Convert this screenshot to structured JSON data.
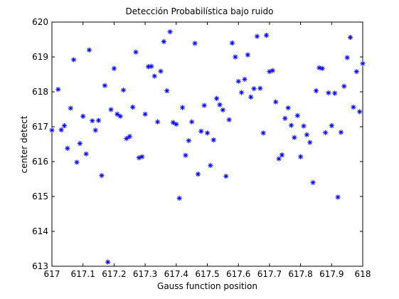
{
  "chart_data": {
    "type": "scatter",
    "title": "Detección Probabilística bajo ruido",
    "xlabel": "Gauss function position",
    "ylabel": "center detect",
    "xlim": [
      617,
      618
    ],
    "ylim": [
      613,
      620
    ],
    "xticks": [
      "617",
      "617.1",
      "617.2",
      "617.3",
      "617.4",
      "617.5",
      "617.6",
      "617.7",
      "617.8",
      "617.9",
      "618"
    ],
    "yticks": [
      "613",
      "614",
      "615",
      "616",
      "617",
      "618",
      "619",
      "620"
    ],
    "grid": false,
    "marker": "*",
    "marker_color": "#0000ff",
    "series": [
      {
        "points": [
          [
            617.0,
            616.9
          ],
          [
            617.02,
            618.07
          ],
          [
            617.03,
            616.91
          ],
          [
            617.04,
            617.03
          ],
          [
            617.05,
            616.38
          ],
          [
            617.06,
            617.53
          ],
          [
            617.07,
            618.92
          ],
          [
            617.08,
            615.98
          ],
          [
            617.09,
            616.52
          ],
          [
            617.1,
            617.3
          ],
          [
            617.11,
            616.22
          ],
          [
            617.12,
            619.2
          ],
          [
            617.13,
            617.17
          ],
          [
            617.14,
            616.9
          ],
          [
            617.15,
            617.18
          ],
          [
            617.16,
            615.6
          ],
          [
            617.17,
            618.18
          ],
          [
            617.18,
            613.12
          ],
          [
            617.19,
            617.49
          ],
          [
            617.2,
            618.67
          ],
          [
            617.21,
            617.36
          ],
          [
            617.22,
            617.3
          ],
          [
            617.23,
            618.05
          ],
          [
            617.24,
            616.66
          ],
          [
            617.25,
            616.72
          ],
          [
            617.26,
            617.56
          ],
          [
            617.27,
            619.14
          ],
          [
            617.28,
            616.11
          ],
          [
            617.29,
            616.14
          ],
          [
            617.3,
            617.36
          ],
          [
            617.31,
            618.72
          ],
          [
            617.32,
            618.73
          ],
          [
            617.33,
            618.45
          ],
          [
            617.34,
            617.14
          ],
          [
            617.35,
            618.59
          ],
          [
            617.36,
            619.44
          ],
          [
            617.37,
            618.03
          ],
          [
            617.38,
            619.72
          ],
          [
            617.39,
            617.12
          ],
          [
            617.4,
            617.07
          ],
          [
            617.41,
            614.95
          ],
          [
            617.42,
            617.55
          ],
          [
            617.43,
            616.18
          ],
          [
            617.44,
            616.6
          ],
          [
            617.45,
            617.14
          ],
          [
            617.46,
            619.39
          ],
          [
            617.47,
            615.64
          ],
          [
            617.48,
            616.87
          ],
          [
            617.49,
            617.61
          ],
          [
            617.5,
            616.82
          ],
          [
            617.51,
            615.89
          ],
          [
            617.52,
            616.62
          ],
          [
            617.53,
            617.81
          ],
          [
            617.54,
            617.63
          ],
          [
            617.55,
            617.48
          ],
          [
            617.56,
            615.58
          ],
          [
            617.57,
            617.2
          ],
          [
            617.58,
            619.4
          ],
          [
            617.59,
            619.0
          ],
          [
            617.6,
            618.3
          ],
          [
            617.61,
            617.98
          ],
          [
            617.62,
            618.36
          ],
          [
            617.63,
            619.06
          ],
          [
            617.64,
            617.85
          ],
          [
            617.65,
            618.09
          ],
          [
            617.66,
            619.59
          ],
          [
            617.67,
            618.1
          ],
          [
            617.68,
            616.82
          ],
          [
            617.69,
            619.62
          ],
          [
            617.7,
            618.58
          ],
          [
            617.71,
            618.61
          ],
          [
            617.72,
            617.71
          ],
          [
            617.73,
            616.08
          ],
          [
            617.74,
            616.19
          ],
          [
            617.75,
            617.24
          ],
          [
            617.76,
            617.54
          ],
          [
            617.77,
            617.04
          ],
          [
            617.78,
            616.69
          ],
          [
            617.79,
            617.32
          ],
          [
            617.8,
            616.14
          ],
          [
            617.81,
            617.02
          ],
          [
            617.82,
            616.77
          ],
          [
            617.83,
            616.55
          ],
          [
            617.84,
            615.4
          ],
          [
            617.85,
            618.03
          ],
          [
            617.86,
            618.69
          ],
          [
            617.87,
            618.67
          ],
          [
            617.88,
            616.83
          ],
          [
            617.89,
            617.97
          ],
          [
            617.9,
            617.03
          ],
          [
            617.91,
            617.96
          ],
          [
            617.92,
            614.98
          ],
          [
            617.93,
            616.84
          ],
          [
            617.94,
            618.16
          ],
          [
            617.95,
            618.98
          ],
          [
            617.96,
            619.56
          ],
          [
            617.97,
            617.56
          ],
          [
            617.98,
            618.58
          ],
          [
            617.99,
            617.43
          ],
          [
            618.0,
            618.81
          ]
        ]
      }
    ]
  }
}
